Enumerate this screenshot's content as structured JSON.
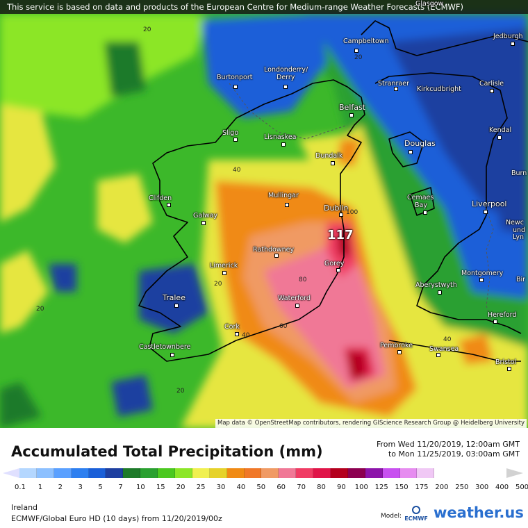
{
  "banner": "This service is based on data and products of the European Centre for Medium-range Weather Forecasts (ECMWF)",
  "map_credit": "Map data © OpenStreetMap contributors, rendering GIScience Research Group @ Heidelberg University",
  "max_value": "117",
  "cities": {
    "glasgow": "Glasgow",
    "campbeltown": "Campbeltown",
    "jedburgh": "Jedburgh",
    "burtonport": "Burtonport",
    "londonderry": "Londonderry/",
    "derry": "Derry",
    "stranraer": "Stranraer",
    "kirkcudbright": "Kirkcudbright",
    "carlisle": "Carlisle",
    "belfast": "Belfast",
    "kendal": "Kendal",
    "sligo": "Sligo",
    "lisnaskea": "Lisnaskea",
    "douglas": "Douglas",
    "dundalk": "Dundalk",
    "burn": "Burn",
    "clifden": "Clifden",
    "mullingar": "Mullingar",
    "cemaes": "Cemaes",
    "bay": "Bay",
    "dublin": "Dublin",
    "liverpool": "Liverpool",
    "newc": "Newc",
    "und": "und",
    "lyn": "Lyn",
    "galway": "Galway",
    "rathdowney": "Rathdowney",
    "limerick": "Limerick",
    "gorey": "Gorey",
    "montgomery": "Montgomery",
    "aberystwyth": "Aberystwyth",
    "bir": "Bir",
    "tralee": "Tralee",
    "waterford": "Waterford",
    "hereford": "Hereford",
    "cork": "Cork",
    "pembroke": "Pembroke",
    "swansea": "Swansea",
    "castletownbere": "Castletownbere",
    "bristol": "Bristol"
  },
  "contours": [
    "20",
    "20",
    "40",
    "100",
    "80",
    "20",
    "20",
    "60",
    "40",
    "40",
    "20"
  ],
  "legend": {
    "title": "Accumulated Total Precipitation (mm)",
    "from": "From Wed 11/20/2019, 12:00am GMT",
    "to": "to Mon 11/25/2019, 03:00am GMT",
    "region": "Ireland",
    "source": "ECMWF/Global Euro HD (10 days) from 11/20/2019/00z",
    "model_label": "Model:",
    "ecmwf_logo": "ECMWF",
    "brand": "weather.us",
    "ticks": [
      "0.1",
      "1",
      "2",
      "3",
      "5",
      "7",
      "10",
      "15",
      "20",
      "25",
      "30",
      "40",
      "50",
      "60",
      "70",
      "80",
      "90",
      "100",
      "125",
      "150",
      "175",
      "200",
      "250",
      "300",
      "400",
      "500"
    ],
    "colors": [
      "#e0e0ff",
      "#b4d7ff",
      "#8cc0ff",
      "#5aa0ff",
      "#2d7ff0",
      "#1a5fd8",
      "#1e3fa0",
      "#1e7a2a",
      "#2aa030",
      "#4bc820",
      "#8ce628",
      "#f0f050",
      "#e6d22a",
      "#f08a14",
      "#f07828",
      "#f09a64",
      "#f07896",
      "#f03c64",
      "#e01448",
      "#b4001e",
      "#8c0050",
      "#8c14aa",
      "#c850f0",
      "#e68cf0",
      "#f0c8f5",
      "#d2d2d2"
    ]
  }
}
